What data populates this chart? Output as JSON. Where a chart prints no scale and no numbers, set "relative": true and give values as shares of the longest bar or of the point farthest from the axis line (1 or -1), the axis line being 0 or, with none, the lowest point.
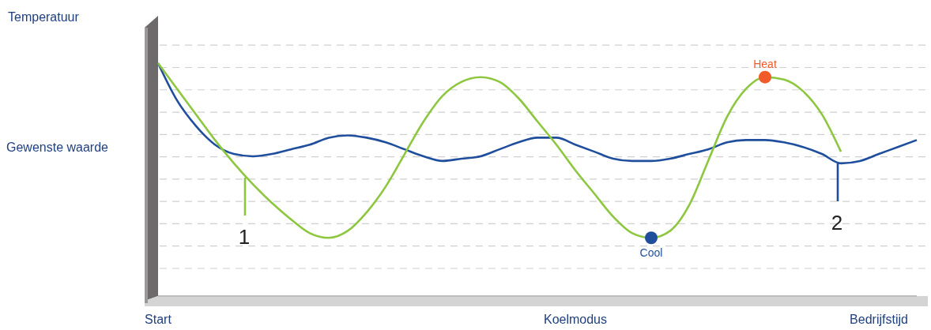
{
  "chart_data": {
    "type": "line",
    "relative": true,
    "grid": "y",
    "categories": [
      "Start",
      null,
      null,
      null,
      null,
      null,
      null,
      null,
      null,
      null,
      null,
      null,
      null,
      null,
      null,
      null,
      null,
      null,
      null,
      null,
      null,
      null,
      "Koelmodus",
      null,
      null,
      null,
      null,
      null,
      null,
      null,
      null,
      null,
      null,
      null,
      null,
      null,
      null,
      null,
      "Bedrijfstijd",
      null,
      null
    ],
    "series": [
      {
        "color": "#1f4e9c",
        "values": [
          1.0,
          0.84,
          0.73,
          0.65,
          0.61,
          0.6,
          0.61,
          0.63,
          0.65,
          0.68,
          0.69,
          0.68,
          0.66,
          0.63,
          0.6,
          0.58,
          0.59,
          0.6,
          0.63,
          0.66,
          0.68,
          0.68,
          0.65,
          0.62,
          0.59,
          0.58,
          0.58,
          0.59,
          0.61,
          0.63,
          0.66,
          0.67,
          0.67,
          0.66,
          0.64,
          0.61,
          0.57,
          0.58,
          0.61,
          0.64,
          0.67
        ]
      },
      {
        "color": "#8dc63f",
        "values": [
          1.0,
          0.89,
          0.78,
          0.67,
          0.57,
          0.48,
          0.4,
          0.33,
          0.27,
          0.25,
          0.28,
          0.36,
          0.47,
          0.61,
          0.75,
          0.86,
          0.92,
          0.94,
          0.92,
          0.85,
          0.75,
          0.65,
          0.54,
          0.44,
          0.34,
          0.27,
          0.25,
          0.28,
          0.39,
          0.58,
          0.77,
          0.89,
          0.94,
          0.93,
          0.88,
          0.78,
          0.62,
          null,
          null,
          null,
          null
        ]
      },
      {
        "name": "Heat",
        "type": "scatter",
        "color": "#f15a29",
        "values": [
          null,
          null,
          null,
          null,
          null,
          null,
          null,
          null,
          null,
          null,
          null,
          null,
          null,
          null,
          null,
          null,
          null,
          null,
          null,
          null,
          null,
          null,
          null,
          null,
          null,
          null,
          null,
          null,
          null,
          null,
          null,
          null,
          0.94,
          null,
          null,
          null,
          null,
          null,
          null,
          null,
          null
        ]
      },
      {
        "name": "Cool",
        "type": "scatter",
        "color": "#1f4e9c",
        "values": [
          null,
          null,
          null,
          null,
          null,
          null,
          null,
          null,
          null,
          null,
          null,
          null,
          null,
          null,
          null,
          null,
          null,
          null,
          null,
          null,
          null,
          null,
          null,
          null,
          null,
          null,
          0.25,
          null,
          null,
          null,
          null,
          null,
          null,
          null,
          null,
          null,
          null,
          null,
          null,
          null,
          null
        ]
      }
    ],
    "annotations": [
      "Temperatuur",
      "Gewenste waarde",
      "1",
      "2"
    ]
  }
}
